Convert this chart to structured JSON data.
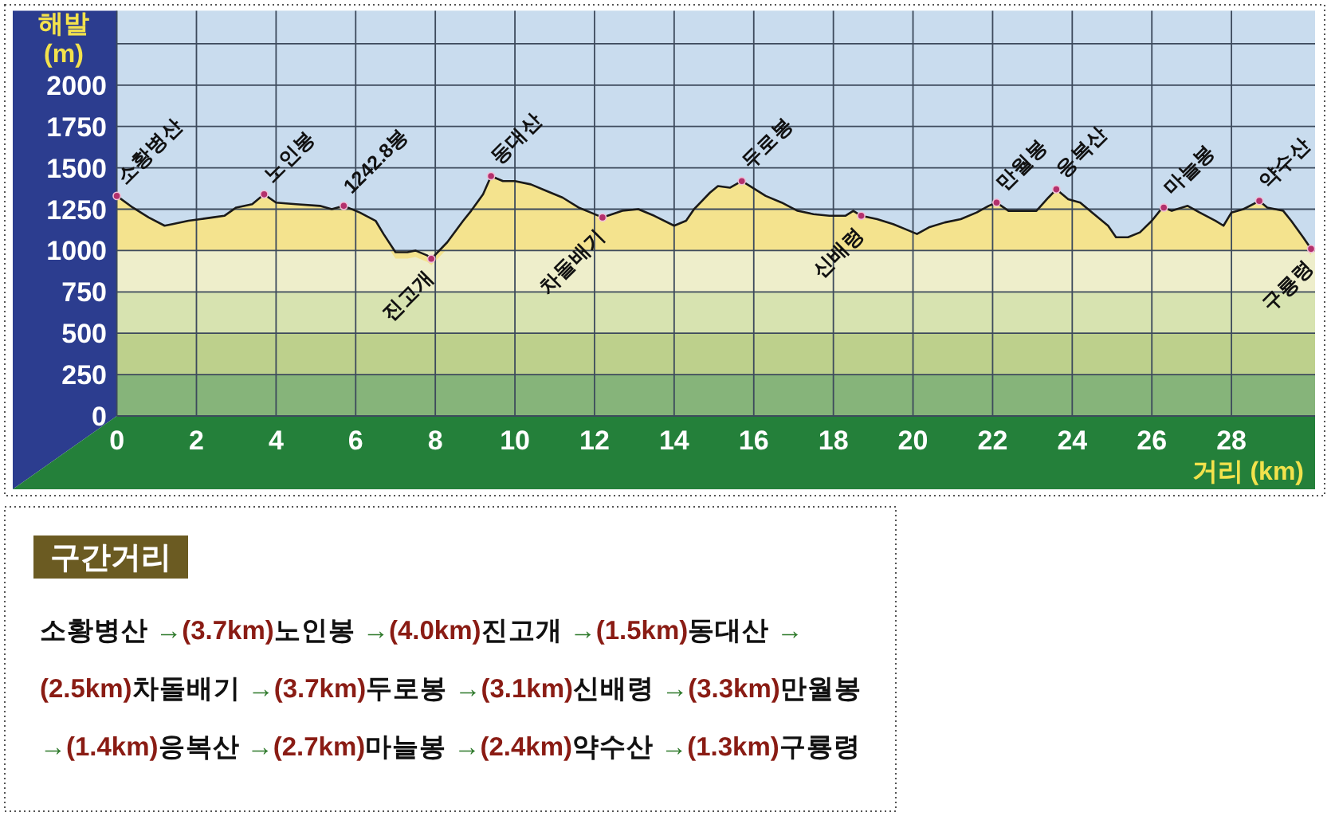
{
  "chart_data": {
    "type": "area",
    "xlabel": "거리 (km)",
    "ylabel": "해발 (m)",
    "x": [
      0,
      0.4,
      0.8,
      1.2,
      1.4,
      1.8,
      2.1,
      2.4,
      2.7,
      3.0,
      3.4,
      3.7,
      4.0,
      4.5,
      5.1,
      5.4,
      5.7,
      6.1,
      6.5,
      6.7,
      7.0,
      7.3,
      7.5,
      7.8,
      7.9,
      8.3,
      8.7,
      8.9,
      9.2,
      9.4,
      9.7,
      10.0,
      10.4,
      10.8,
      11.2,
      11.6,
      11.9,
      12.2,
      12.7,
      13.1,
      13.5,
      14.0,
      14.3,
      14.5,
      14.9,
      15.1,
      15.4,
      15.7,
      15.9,
      16.3,
      16.7,
      17.1,
      17.5,
      17.9,
      18.3,
      18.5,
      18.7,
      19.1,
      19.5,
      19.8,
      20.1,
      20.4,
      20.8,
      21.2,
      21.6,
      21.9,
      22.1,
      22.4,
      22.8,
      23.1,
      23.4,
      23.6,
      23.9,
      24.2,
      24.5,
      24.9,
      25.1,
      25.4,
      25.7,
      26.0,
      26.2,
      26.3,
      26.5,
      26.9,
      27.2,
      27.6,
      27.8,
      28.0,
      28.3,
      28.7,
      28.9,
      29.3,
      29.5,
      29.8,
      30.0
    ],
    "series": [
      {
        "color": "#f4e38e",
        "values": [
          1330,
          1260,
          1200,
          1150,
          1160,
          1180,
          1190,
          1200,
          1210,
          1260,
          1280,
          1340,
          1290,
          1280,
          1270,
          1250,
          1270,
          1230,
          1180,
          1100,
          990,
          990,
          1000,
          970,
          950,
          1050,
          1180,
          1240,
          1340,
          1450,
          1420,
          1420,
          1400,
          1360,
          1320,
          1260,
          1230,
          1200,
          1240,
          1250,
          1210,
          1150,
          1180,
          1250,
          1350,
          1390,
          1380,
          1420,
          1390,
          1330,
          1290,
          1240,
          1220,
          1210,
          1210,
          1240,
          1210,
          1190,
          1160,
          1130,
          1100,
          1140,
          1170,
          1190,
          1230,
          1270,
          1290,
          1240,
          1240,
          1240,
          1320,
          1370,
          1310,
          1290,
          1230,
          1150,
          1080,
          1080,
          1110,
          1180,
          1240,
          1260,
          1240,
          1270,
          1230,
          1180,
          1150,
          1230,
          1250,
          1300,
          1260,
          1240,
          1180,
          1080,
          1010
        ]
      }
    ],
    "xlim": [
      0,
      30.1
    ],
    "xticks": [
      0,
      2,
      4,
      6,
      8,
      10,
      12,
      14,
      16,
      18,
      20,
      22,
      24,
      26,
      28
    ],
    "ylim": [
      0,
      2450
    ],
    "yticks": [
      0,
      250,
      500,
      750,
      1000,
      1250,
      1500,
      1750,
      2000,
      {
        "value": 2250,
        "label": null
      }
    ],
    "grid": true,
    "line_style": "solid",
    "bands": [
      {
        "axis": "y",
        "from": 0,
        "to": 250,
        "color": "#86b47a"
      },
      {
        "axis": "y",
        "from": 250,
        "to": 500,
        "color": "#bdd08c"
      },
      {
        "axis": "y",
        "from": 500,
        "to": 750,
        "color": "#d7e3b0"
      },
      {
        "axis": "y",
        "from": 750,
        "to": 1000,
        "color": "#eeeecb"
      }
    ],
    "annotations": [
      {
        "text": "소황병산",
        "x": 0,
        "y": 1330
      },
      {
        "text": "노인봉",
        "x": 3.7,
        "y": 1340
      },
      {
        "text": "1242.8봉",
        "x": 5.7,
        "y": 1270
      },
      {
        "text": "진고개",
        "x": 7.9,
        "y": 950
      },
      {
        "text": "동대산",
        "x": 9.4,
        "y": 1450
      },
      {
        "text": "차돌배기",
        "x": 12.2,
        "y": 1200
      },
      {
        "text": "두로봉",
        "x": 15.7,
        "y": 1420
      },
      {
        "text": "신배령",
        "x": 18.7,
        "y": 1210
      },
      {
        "text": "만월봉",
        "x": 22.1,
        "y": 1290
      },
      {
        "text": "응복산",
        "x": 23.6,
        "y": 1370
      },
      {
        "text": "마늘봉",
        "x": 26.3,
        "y": 1260
      },
      {
        "text": "약수산",
        "x": 28.7,
        "y": 1300
      },
      {
        "text": "구룡령",
        "x": 30.0,
        "y": 1010
      },
      "구간거리",
      "소황병산 →(3.7km)노인봉 →(4.0km)진고개 →(1.5km)동대산 →",
      "(2.5km)차돌배기 →(3.7km)두로봉 →(3.1km)신배령 →(3.3km)만월봉",
      "→(1.4km)응복산 →(2.7km)마늘봉 →(2.4km)약수산 →(1.3km)구룡령"
    ]
  }
}
